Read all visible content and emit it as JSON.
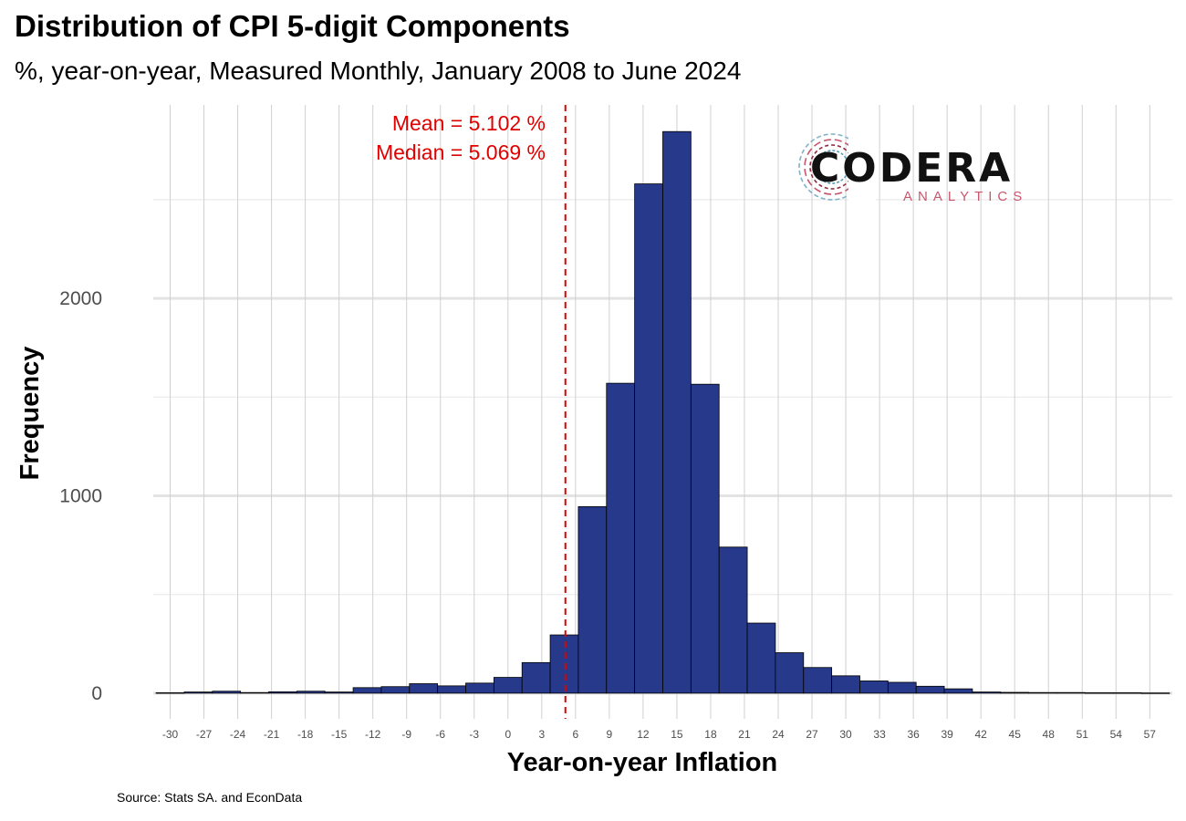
{
  "title": "Distribution of CPI 5-digit Components",
  "subtitle": "%, year-on-year, Measured Monthly, January 2008 to June 2024",
  "caption": "Source: Stats SA. and EconData",
  "logo": {
    "main": "CODERA",
    "sub": "ANALYTICS"
  },
  "colors": {
    "bar_fill": "#27398b",
    "bar_stroke": "#000000",
    "reference_line": "#e00000",
    "grid": "#e6e6e6"
  },
  "chart_data": {
    "type": "bar",
    "xlabel": "Year-on-year Inflation",
    "ylabel": "Frequency",
    "bin_width": 2.5,
    "xlim": [
      -31.5,
      59
    ],
    "ylim": [
      -130,
      2980
    ],
    "x_ticks": [
      -30,
      -27,
      -24,
      -21,
      -18,
      -15,
      -12,
      -9,
      -6,
      -3,
      0,
      3,
      6,
      9,
      12,
      15,
      18,
      21,
      24,
      27,
      30,
      33,
      36,
      39,
      42,
      45,
      48,
      51,
      54,
      57
    ],
    "y_ticks": [
      0,
      1000,
      2000
    ],
    "grid": true,
    "bins": [
      {
        "x": -30,
        "count": 2
      },
      {
        "x": -27.5,
        "count": 6
      },
      {
        "x": -25,
        "count": 10
      },
      {
        "x": -22.5,
        "count": 3
      },
      {
        "x": -20,
        "count": 7
      },
      {
        "x": -17.5,
        "count": 10
      },
      {
        "x": -15,
        "count": 6
      },
      {
        "x": -12.5,
        "count": 28
      },
      {
        "x": -10,
        "count": 33
      },
      {
        "x": -7.5,
        "count": 48
      },
      {
        "x": -5,
        "count": 37
      },
      {
        "x": -2.5,
        "count": 51
      },
      {
        "x": 0,
        "count": 80
      },
      {
        "x": 2.5,
        "count": 155
      },
      {
        "x": 5,
        "count": 295
      },
      {
        "x": 7.5,
        "count": 945
      },
      {
        "x": 10,
        "count": 1570
      },
      {
        "x": 12.5,
        "count": 2580
      },
      {
        "x": 15,
        "count": 2845
      },
      {
        "x": 17.5,
        "count": 1565
      },
      {
        "x": 20,
        "count": 740
      },
      {
        "x": 22.5,
        "count": 355
      },
      {
        "x": 25,
        "count": 205
      },
      {
        "x": 27.5,
        "count": 130
      },
      {
        "x": 30,
        "count": 88
      },
      {
        "x": 32.5,
        "count": 62
      },
      {
        "x": 35,
        "count": 55
      },
      {
        "x": 37.5,
        "count": 35
      },
      {
        "x": 40,
        "count": 22
      },
      {
        "x": 42.5,
        "count": 6
      },
      {
        "x": 45,
        "count": 4
      },
      {
        "x": 47.5,
        "count": 3
      },
      {
        "x": 50,
        "count": 3
      },
      {
        "x": 52.5,
        "count": 2
      },
      {
        "x": 55,
        "count": 2
      },
      {
        "x": 57.5,
        "count": 1
      }
    ],
    "reference_line": {
      "x": 5.1,
      "mean_label": "Mean = 5.102 %",
      "median_label": "Median = 5.069 %"
    }
  }
}
